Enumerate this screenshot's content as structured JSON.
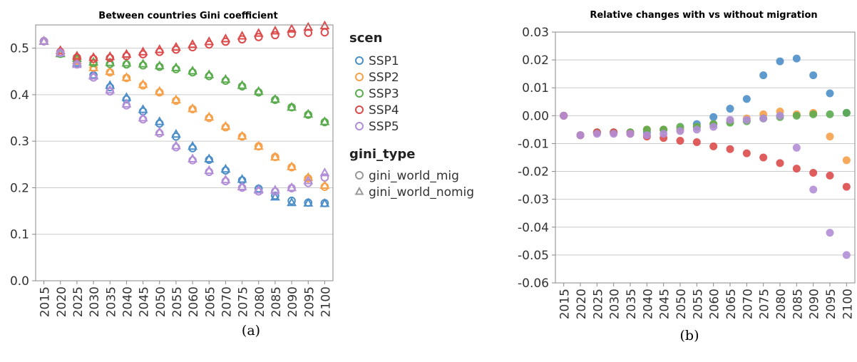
{
  "colors": {
    "SSP1": "#4c8fc8",
    "SSP2": "#f6a04a",
    "SSP3": "#5bab4f",
    "SSP4": "#dc4b4b",
    "SSP5": "#b28ed7",
    "legend_gray": "#999999",
    "axis": "#888888",
    "grid": "#cccccc"
  },
  "captions": [
    "(a)",
    "(b)"
  ],
  "chart_data": [
    {
      "type": "scatter",
      "title": "Between countries Gini coefficient",
      "xlabel": "",
      "ylabel": "",
      "categories": [
        "2015",
        "2020",
        "2025",
        "2030",
        "2035",
        "2040",
        "2045",
        "2050",
        "2055",
        "2060",
        "2065",
        "2070",
        "2075",
        "2080",
        "2085",
        "2090",
        "2095",
        "2100"
      ],
      "ylim": [
        0,
        0.55
      ],
      "yticks": [
        0.0,
        0.1,
        0.2,
        0.3,
        0.4,
        0.5
      ],
      "grid": true,
      "legend": {
        "placement": "right",
        "sections": [
          {
            "title": "scen",
            "entries": [
              "SSP1",
              "SSP2",
              "SSP3",
              "SSP4",
              "SSP5"
            ]
          },
          {
            "title": "gini_type",
            "entries": [
              "gini_world_mig",
              "gini_world_nomig"
            ]
          }
        ]
      },
      "series": [
        {
          "scen": "SSP1",
          "gini_type": "gini_world_mig",
          "values": [
            0.515,
            0.49,
            0.468,
            0.442,
            0.416,
            0.39,
            0.364,
            0.338,
            0.31,
            0.285,
            0.26,
            0.237,
            0.216,
            0.198,
            0.183,
            0.172,
            0.168,
            0.167
          ]
        },
        {
          "scen": "SSP1",
          "gini_type": "gini_world_nomig",
          "values": [
            0.515,
            0.49,
            0.468,
            0.442,
            0.42,
            0.394,
            0.368,
            0.342,
            0.315,
            0.289,
            0.262,
            0.24,
            0.218,
            0.197,
            0.18,
            0.168,
            0.167,
            0.166
          ]
        },
        {
          "scen": "SSP2",
          "gini_type": "gini_world_mig",
          "values": [
            0.515,
            0.49,
            0.473,
            0.458,
            0.448,
            0.436,
            0.42,
            0.405,
            0.387,
            0.369,
            0.35,
            0.33,
            0.31,
            0.289,
            0.266,
            0.244,
            0.22,
            0.202
          ]
        },
        {
          "scen": "SSP2",
          "gini_type": "gini_world_nomig",
          "values": [
            0.515,
            0.49,
            0.473,
            0.458,
            0.45,
            0.437,
            0.422,
            0.407,
            0.389,
            0.37,
            0.352,
            0.332,
            0.311,
            0.289,
            0.266,
            0.245,
            0.222,
            0.205
          ]
        },
        {
          "scen": "SSP3",
          "gini_type": "gini_world_mig",
          "values": [
            0.515,
            0.488,
            0.478,
            0.468,
            0.466,
            0.465,
            0.463,
            0.46,
            0.455,
            0.448,
            0.44,
            0.43,
            0.418,
            0.405,
            0.389,
            0.373,
            0.357,
            0.341
          ]
        },
        {
          "scen": "SSP3",
          "gini_type": "gini_world_nomig",
          "values": [
            0.515,
            0.488,
            0.478,
            0.47,
            0.469,
            0.468,
            0.466,
            0.462,
            0.458,
            0.451,
            0.443,
            0.433,
            0.42,
            0.407,
            0.39,
            0.373,
            0.358,
            0.342
          ]
        },
        {
          "scen": "SSP4",
          "gini_type": "gini_world_mig",
          "values": [
            0.515,
            0.492,
            0.48,
            0.477,
            0.479,
            0.483,
            0.487,
            0.492,
            0.497,
            0.502,
            0.508,
            0.514,
            0.519,
            0.524,
            0.528,
            0.531,
            0.533,
            0.534
          ]
        },
        {
          "scen": "SSP4",
          "gini_type": "gini_world_nomig",
          "values": [
            0.515,
            0.495,
            0.483,
            0.48,
            0.482,
            0.487,
            0.492,
            0.497,
            0.502,
            0.508,
            0.514,
            0.52,
            0.526,
            0.532,
            0.537,
            0.541,
            0.545,
            0.548
          ]
        },
        {
          "scen": "SSP5",
          "gini_type": "gini_world_mig",
          "values": [
            0.515,
            0.49,
            0.465,
            0.437,
            0.407,
            0.377,
            0.347,
            0.317,
            0.287,
            0.259,
            0.234,
            0.214,
            0.2,
            0.192,
            0.192,
            0.199,
            0.21,
            0.222
          ]
        },
        {
          "scen": "SSP5",
          "gini_type": "gini_world_nomig",
          "values": [
            0.515,
            0.49,
            0.465,
            0.44,
            0.41,
            0.38,
            0.35,
            0.32,
            0.29,
            0.262,
            0.237,
            0.217,
            0.202,
            0.195,
            0.195,
            0.2,
            0.215,
            0.232
          ]
        }
      ]
    },
    {
      "type": "scatter",
      "title": "Relative changes with vs without migration",
      "xlabel": "",
      "ylabel": "",
      "categories": [
        "2015",
        "2020",
        "2025",
        "2030",
        "2035",
        "2040",
        "2045",
        "2050",
        "2055",
        "2060",
        "2065",
        "2070",
        "2075",
        "2080",
        "2085",
        "2090",
        "2095",
        "2100"
      ],
      "ylim": [
        -0.06,
        0.03
      ],
      "yticks": [
        "-0.06",
        "-0.05",
        "-0.04",
        "-0.03",
        "-0.02",
        "-0.01",
        "0.00",
        "0.01",
        "0.02",
        "0.03"
      ],
      "grid": true,
      "series": [
        {
          "name": "SSP1",
          "values": [
            0.0,
            -0.007,
            -0.006,
            -0.006,
            -0.006,
            -0.006,
            -0.005,
            -0.005,
            -0.003,
            -0.0005,
            0.0025,
            0.006,
            0.0145,
            0.0195,
            0.0205,
            0.0145,
            0.008,
            0.001
          ]
        },
        {
          "name": "SSP2",
          "values": [
            0.0,
            -0.007,
            -0.006,
            -0.006,
            -0.006,
            -0.005,
            -0.005,
            -0.005,
            -0.004,
            -0.003,
            -0.002,
            -0.001,
            0.0005,
            0.0015,
            0.0005,
            0.001,
            -0.0075,
            -0.016
          ]
        },
        {
          "name": "SSP3",
          "values": [
            0.0,
            -0.007,
            -0.006,
            -0.006,
            -0.006,
            -0.005,
            -0.005,
            -0.004,
            -0.004,
            -0.003,
            -0.0025,
            -0.002,
            -0.001,
            -0.0005,
            0.0,
            0.0005,
            0.0005,
            0.001
          ]
        },
        {
          "name": "SSP4",
          "values": [
            0.0,
            -0.007,
            -0.006,
            -0.006,
            -0.0065,
            -0.0075,
            -0.008,
            -0.009,
            -0.0095,
            -0.011,
            -0.012,
            -0.0135,
            -0.015,
            -0.017,
            -0.019,
            -0.0205,
            -0.0215,
            -0.0255
          ]
        },
        {
          "name": "SSP5",
          "values": [
            0.0,
            -0.007,
            -0.0065,
            -0.0065,
            -0.0065,
            -0.007,
            -0.0065,
            -0.0055,
            -0.005,
            -0.004,
            -0.0015,
            -0.0015,
            -0.001,
            0.0,
            -0.0115,
            -0.0265,
            -0.042,
            -0.05
          ]
        }
      ]
    }
  ]
}
